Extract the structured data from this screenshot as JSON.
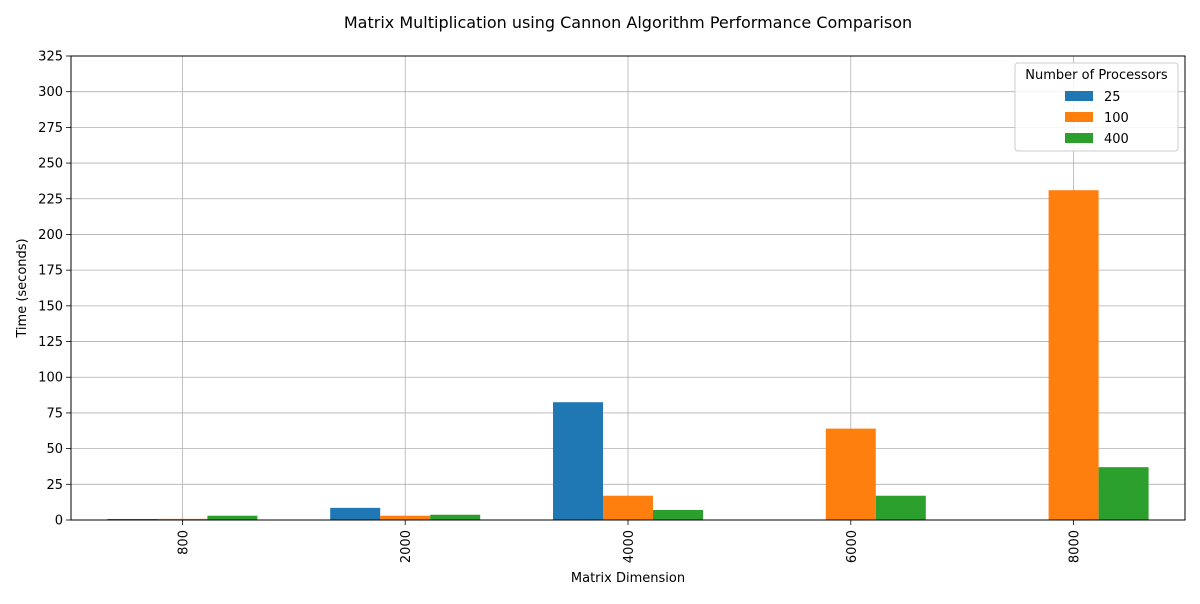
{
  "chart_data": {
    "type": "bar",
    "title": "Matrix Multiplication using Cannon Algorithm Performance Comparison",
    "xlabel": "Matrix Dimension",
    "ylabel": "Time (seconds)",
    "categories": [
      "800",
      "2000",
      "4000",
      "6000",
      "8000"
    ],
    "series": [
      {
        "name": "25",
        "color": "#1f77b4",
        "values": [
          0.7,
          8.5,
          82.5,
          0,
          0
        ]
      },
      {
        "name": "100",
        "color": "#ff7f0e",
        "values": [
          0.8,
          3.0,
          17.0,
          64.0,
          231.0
        ]
      },
      {
        "name": "400",
        "color": "#2ca02c",
        "values": [
          3.0,
          3.7,
          7.0,
          17.0,
          37.0
        ]
      }
    ],
    "ylim": [
      0,
      325
    ],
    "yticks": [
      "0",
      "25",
      "50",
      "75",
      "100",
      "125",
      "150",
      "175",
      "200",
      "225",
      "250",
      "275",
      "300",
      "325"
    ],
    "grid": true,
    "legend": {
      "title": "Number of Processors",
      "position": "top-right"
    },
    "x_tick_rotation": "vertical"
  }
}
